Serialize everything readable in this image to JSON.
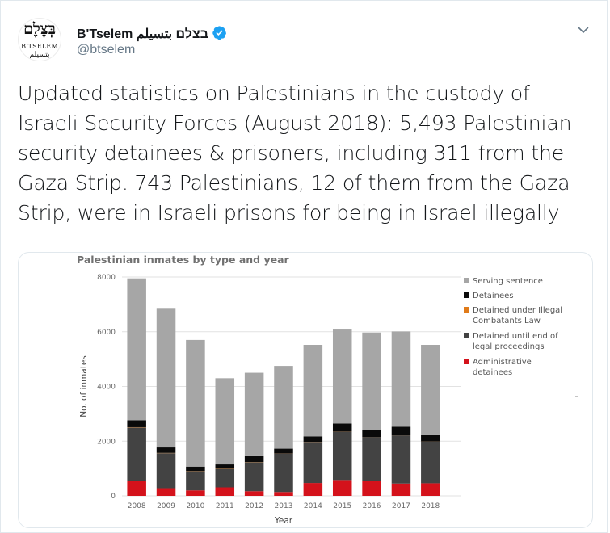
{
  "tweet": {
    "author": {
      "display_name": "B'Tselem בצלם بتسيلم",
      "handle": "@btselem",
      "avatar_hebrew": "בְּצֶלֶם",
      "avatar_latin": "B'TSELEM",
      "avatar_arabic": "بتسيلم"
    },
    "text": "Updated statistics on Palestinians in the custody of Israeli Security Forces (August 2018): 5,493 Palestinian security detainees & prisoners, including 311 from the Gaza Strip. 743 Palestinians, 12 of them from the Gaza Strip, were in Israeli prisons for being in Israel illegally"
  },
  "icons": {
    "verified": "verified-badge-icon",
    "menu": "chevron-down-icon"
  },
  "colors": {
    "verified": "#1da1f2",
    "serving": "#a6a6a6",
    "detainees": "#0a0a0a",
    "illegal_combatants": "#e07b1a",
    "legal_proceedings": "#434343",
    "administrative": "#d4121b"
  },
  "chart_data": {
    "type": "bar",
    "stacked": true,
    "title": "Palestinian inmates by type and year",
    "xlabel": "Year",
    "ylabel": "No. of inmates",
    "ylim": [
      0,
      8000
    ],
    "yticks": [
      0,
      2000,
      4000,
      6000,
      8000
    ],
    "grid": true,
    "legend_position": "right",
    "categories": [
      "2008",
      "2009",
      "2010",
      "2011",
      "2012",
      "2013",
      "2014",
      "2015",
      "2016",
      "2017",
      "2018"
    ],
    "series": [
      {
        "name": "Administrative detainees",
        "color": "#d4121b",
        "values": [
          550,
          280,
          200,
          310,
          170,
          140,
          470,
          580,
          540,
          450,
          460
        ]
      },
      {
        "name": "Detained until end of legal proceedings",
        "color": "#434343",
        "values": [
          1950,
          1280,
          700,
          670,
          1050,
          1400,
          1500,
          1760,
          1600,
          1750,
          1520
        ]
      },
      {
        "name": "Detained under Illegal Combatants Law",
        "color": "#e07b1a",
        "values": [
          10,
          10,
          10,
          10,
          10,
          5,
          5,
          5,
          5,
          5,
          5
        ]
      },
      {
        "name": "Detainees",
        "color": "#0a0a0a",
        "values": [
          250,
          200,
          160,
          160,
          220,
          180,
          200,
          300,
          250,
          320,
          230
        ]
      },
      {
        "name": "Serving sentence",
        "color": "#a6a6a6",
        "values": [
          5190,
          5070,
          4630,
          3150,
          3050,
          3025,
          3345,
          3435,
          3575,
          3485,
          3305
        ]
      }
    ],
    "legend": [
      {
        "label": "Serving sentence",
        "color": "#a6a6a6"
      },
      {
        "label": "Detainees",
        "color": "#0a0a0a"
      },
      {
        "label": "Detained under Illegal Combatants Law",
        "color": "#e07b1a"
      },
      {
        "label": "Detained until end of legal proceedings",
        "color": "#434343"
      },
      {
        "label": "Administrative detainees",
        "color": "#d4121b"
      }
    ]
  }
}
